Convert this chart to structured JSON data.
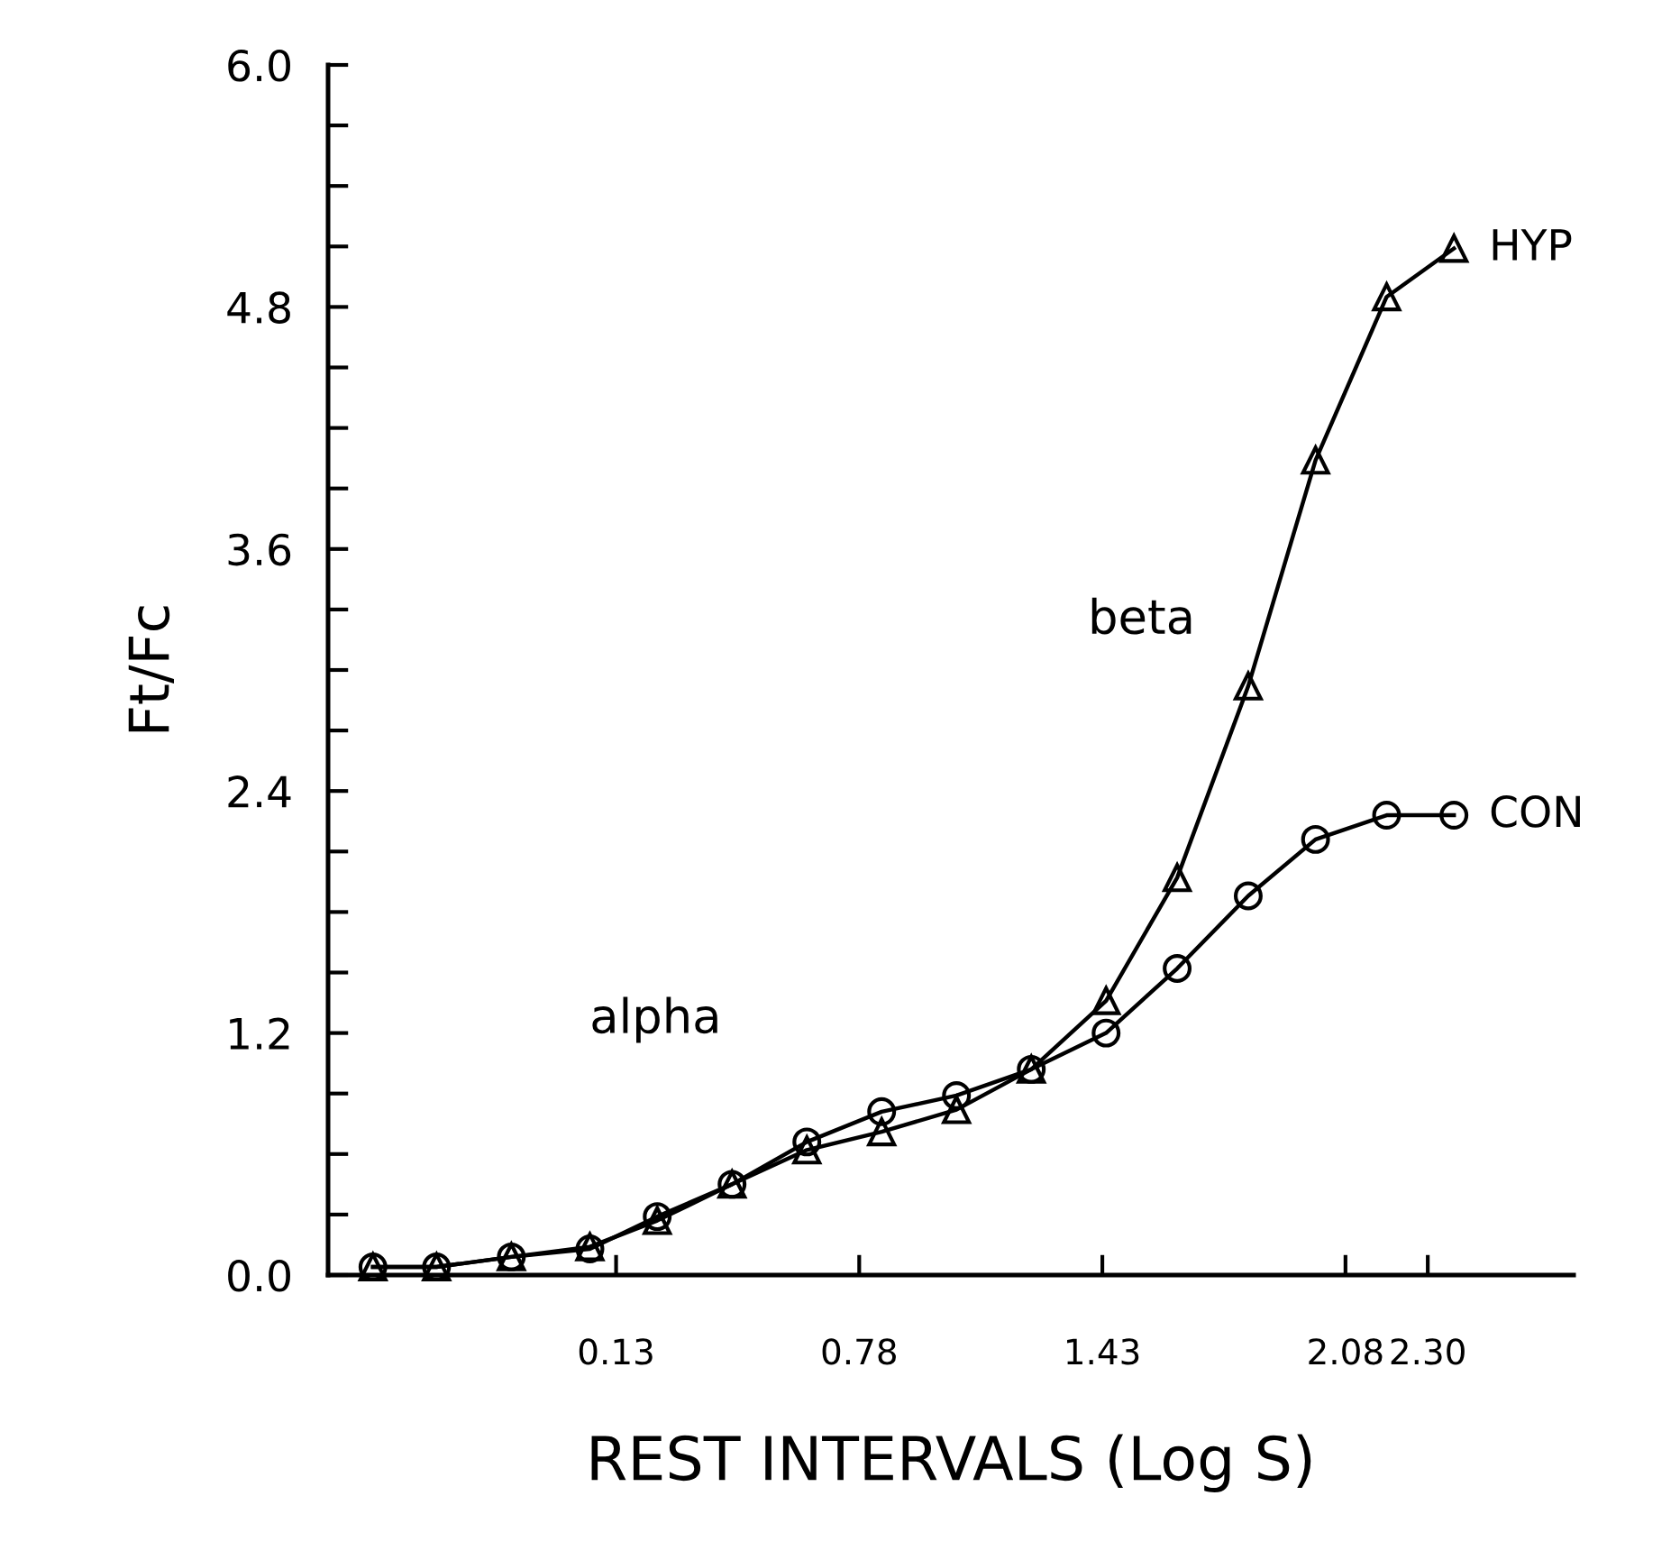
{
  "chart_data": {
    "type": "line",
    "xlabel": "REST INTERVALS (Log S)",
    "ylabel": "Ft/Fc",
    "x": [
      -0.52,
      -0.35,
      -0.15,
      0.06,
      0.24,
      0.44,
      0.64,
      0.84,
      1.04,
      1.24,
      1.44,
      1.63,
      1.82,
      2.0,
      2.19,
      2.37
    ],
    "series": [
      {
        "name": "CON",
        "color": "#000000",
        "marker": "circle",
        "values": [
          0.04,
          0.04,
          0.09,
          0.13,
          0.29,
          0.45,
          0.66,
          0.81,
          0.89,
          1.02,
          1.2,
          1.52,
          1.88,
          2.16,
          2.28,
          2.28
        ]
      },
      {
        "name": "HYP",
        "color": "#000000",
        "marker": "triangle",
        "values": [
          0.04,
          0.04,
          0.09,
          0.14,
          0.27,
          0.45,
          0.62,
          0.71,
          0.82,
          1.02,
          1.36,
          1.97,
          2.92,
          4.04,
          4.85,
          5.09
        ]
      }
    ],
    "annotations": [
      "alpha",
      "beta"
    ],
    "xlim": [
      -0.64,
      2.69
    ],
    "ylim": [
      0,
      6
    ],
    "xticks": [
      0.13,
      0.78,
      1.43,
      2.08,
      {
        "value": 2.3,
        "label": "2.30"
      }
    ],
    "yticks": [
      {
        "value": 0,
        "label": "0.0"
      },
      {
        "value": 0.3,
        "label": null
      },
      {
        "value": 0.6,
        "label": null
      },
      {
        "value": 0.9,
        "label": null
      },
      1.2,
      {
        "value": 1.5,
        "label": null
      },
      {
        "value": 1.8,
        "label": null
      },
      {
        "value": 2.1,
        "label": null
      },
      2.4,
      {
        "value": 2.7,
        "label": null
      },
      {
        "value": 3.0,
        "label": null
      },
      {
        "value": 3.3,
        "label": null
      },
      3.6,
      {
        "value": 3.9,
        "label": null
      },
      {
        "value": 4.2,
        "label": null
      },
      {
        "value": 4.5,
        "label": null
      },
      4.8,
      {
        "value": 5.1,
        "label": null
      },
      {
        "value": 5.4,
        "label": null
      },
      {
        "value": 5.7,
        "label": null
      },
      {
        "value": 6,
        "label": "6.0"
      }
    ],
    "grid": false,
    "legend": false,
    "line_style": "solid"
  }
}
